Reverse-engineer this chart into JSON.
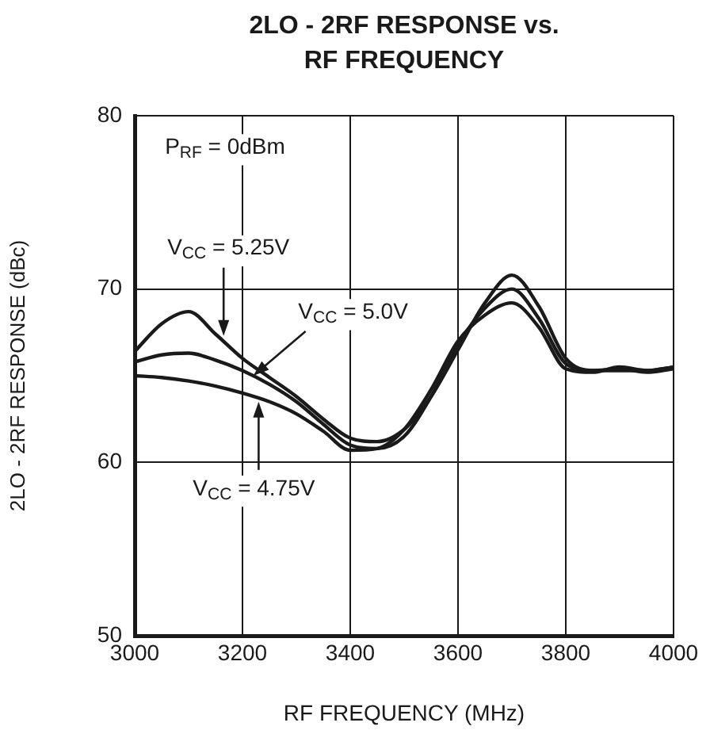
{
  "chart_data": {
    "type": "line",
    "title": "2LO - 2RF RESPONSE vs. RF FREQUENCY",
    "xlabel": "RF FREQUENCY (MHz)",
    "ylabel": "2LO - 2RF RESPONSE (dBc)",
    "xlim": [
      3000,
      4000
    ],
    "xticks": [
      3000,
      3200,
      3400,
      3600,
      3800,
      4000
    ],
    "ylim": [
      50,
      80
    ],
    "yticks": [
      50,
      60,
      70,
      80
    ],
    "grid": true,
    "legend": false,
    "marker": "none",
    "line_style": "solid",
    "series": [
      {
        "color": "#1a1a1a",
        "x": [
          3000,
          3050,
          3100,
          3150,
          3200,
          3250,
          3300,
          3350,
          3400,
          3450,
          3500,
          3550,
          3600,
          3650,
          3700,
          3750,
          3800,
          3850,
          3900,
          3950,
          4000
        ],
        "values": [
          66.4,
          68.0,
          68.7,
          67.4,
          66.0,
          64.9,
          63.8,
          62.5,
          61.4,
          61.2,
          61.9,
          63.8,
          66.5,
          69.2,
          70.8,
          69.0,
          66.0,
          65.3,
          65.3,
          65.3,
          65.5
        ]
      },
      {
        "color": "#1a1a1a",
        "x": [
          3000,
          3050,
          3100,
          3150,
          3200,
          3250,
          3300,
          3350,
          3400,
          3450,
          3500,
          3550,
          3600,
          3650,
          3700,
          3750,
          3800,
          3850,
          3900,
          3950,
          4000
        ],
        "values": [
          65.8,
          66.2,
          66.3,
          65.9,
          65.3,
          64.5,
          63.5,
          62.2,
          61.0,
          60.8,
          61.5,
          63.8,
          66.8,
          68.9,
          70.0,
          68.3,
          65.7,
          65.3,
          65.4,
          65.2,
          65.4
        ]
      },
      {
        "color": "#1a1a1a",
        "x": [
          3000,
          3050,
          3100,
          3150,
          3200,
          3250,
          3300,
          3350,
          3400,
          3450,
          3500,
          3550,
          3600,
          3650,
          3700,
          3750,
          3800,
          3850,
          3900,
          3950,
          4000
        ],
        "values": [
          65.0,
          64.9,
          64.7,
          64.4,
          64.0,
          63.5,
          62.8,
          61.8,
          60.7,
          60.8,
          61.9,
          64.2,
          67.0,
          68.5,
          69.2,
          67.8,
          65.4,
          65.2,
          65.5,
          65.3,
          65.5
        ]
      }
    ],
    "annotations": [
      "P$_{RF}$ = 0dBm",
      {
        "text": "V$_{CC}$ = 5.25V",
        "x": 3165,
        "y": 67.3
      },
      {
        "text": "V$_{CC}$ = 5.0V",
        "x": 3220,
        "y": 65.0
      },
      {
        "text": "V$_{CC}$ = 4.75V",
        "x": 3230,
        "y": 63.5
      }
    ]
  }
}
